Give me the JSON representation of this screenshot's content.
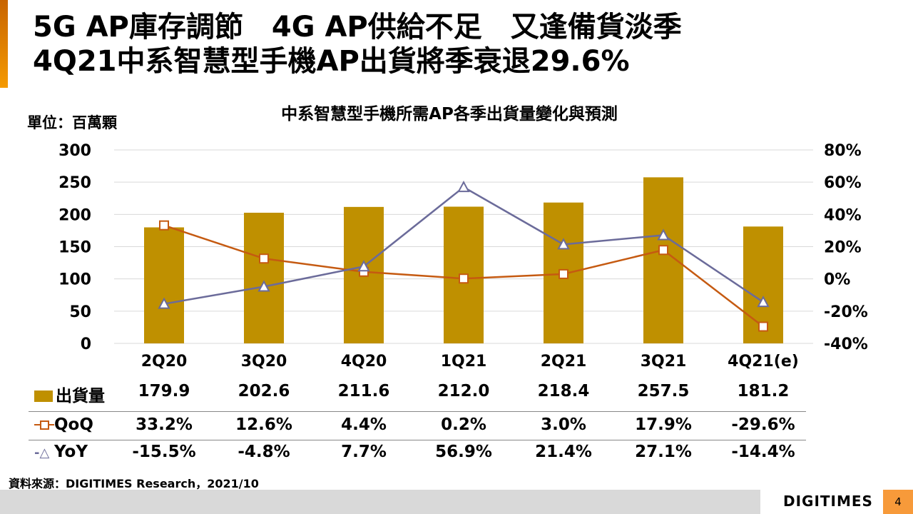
{
  "title": {
    "line1": "5G AP庫存調節　4G AP供給不足　又逢備貨淡季",
    "line2": "4Q21中系智慧型手機AP出貨將季衰退29.6%"
  },
  "unit_label": "單位：百萬顆",
  "source": "資料來源：DIGITIMES Research，2021/10",
  "logo": "DIGITIMES",
  "page_number": "4",
  "colors": {
    "bar": "#bf9000",
    "qoq": "#c55a11",
    "yoy": "#6b6b9a",
    "accent": "#f79a3a"
  },
  "chart_data": {
    "type": "bar+line",
    "title": "中系智慧型手機所需AP各季出貨量變化與預測",
    "categories": [
      "2Q20",
      "3Q20",
      "4Q20",
      "1Q21",
      "2Q21",
      "3Q21",
      "4Q21(e)"
    ],
    "y_left": {
      "lim": [
        0,
        300
      ],
      "ticks": [
        "0",
        "50",
        "100",
        "150",
        "200",
        "250",
        "300"
      ]
    },
    "y_right": {
      "lim": [
        -40,
        80
      ],
      "ticks": [
        "-40%",
        "-20%",
        "0%",
        "20%",
        "40%",
        "60%",
        "80%"
      ]
    },
    "grid": true,
    "series": [
      {
        "name": "出貨量",
        "type": "bar",
        "axis": "left",
        "values": [
          179.9,
          202.6,
          211.6,
          212.0,
          218.4,
          257.5,
          181.2
        ],
        "labels": [
          "179.9",
          "202.6",
          "211.6",
          "212.0",
          "218.4",
          "257.5",
          "181.2"
        ]
      },
      {
        "name": "QoQ",
        "type": "line",
        "marker": "square",
        "axis": "right",
        "values": [
          33.2,
          12.6,
          4.4,
          0.2,
          3.0,
          17.9,
          -29.6
        ],
        "labels": [
          "33.2%",
          "12.6%",
          "4.4%",
          "0.2%",
          "3.0%",
          "17.9%",
          "-29.6%"
        ]
      },
      {
        "name": "YoY",
        "type": "line",
        "marker": "triangle",
        "axis": "right",
        "values": [
          -15.5,
          -4.8,
          7.7,
          56.9,
          21.4,
          27.1,
          -14.4
        ],
        "labels": [
          "-15.5%",
          "-4.8%",
          "7.7%",
          "56.9%",
          "21.4%",
          "27.1%",
          "-14.4%"
        ]
      }
    ]
  }
}
